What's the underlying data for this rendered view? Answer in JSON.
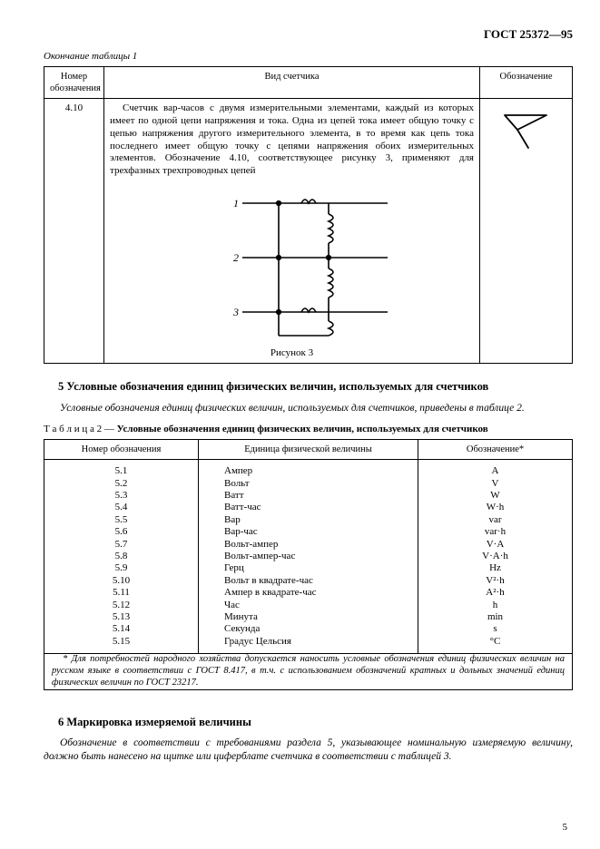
{
  "doc_header": "ГОСТ 25372—95",
  "table1": {
    "caption_end": "Окончание таблицы 1",
    "headers": {
      "num": "Номер обозначения",
      "kind": "Вид счетчика",
      "sym": "Обозначение"
    },
    "row": {
      "num": "4.10",
      "desc": "Счетчик вар-часов с двумя измерительными элементами, каждый из которых имеет по одной цепи напряжения и тока. Одна из цепей тока имеет общую точку с цепью напряжения другого измерительного элемента, в то время как цепь тока последнего имеет общую точку с цепями напряжения обоих измерительных элементов. Обозначение 4.10, соответствующее рисунку 3, применяют для трехфазных трехпроводных цепей"
    },
    "figure": {
      "labels": [
        "1",
        "2",
        "3"
      ],
      "caption": "Рисунок 3"
    }
  },
  "section5": {
    "title": "5  Условные обозначения единиц физических величин, используемых для счетчиков",
    "intro": "Условные обозначения единиц физических величин, используемых для счетчиков, приведены в таблице 2.",
    "table2": {
      "caption_lead": "Т а б л и ц а  2 — ",
      "caption_bold": "Условные обозначения единиц физических величин, используемых для счетчиков",
      "headers": {
        "num": "Номер обозначения",
        "unit": "Единица физической величины",
        "sym": "Обозначение*"
      },
      "rows": [
        {
          "num": "5.1",
          "unit": "Ампер",
          "sym": "A"
        },
        {
          "num": "5.2",
          "unit": "Вольт",
          "sym": "V"
        },
        {
          "num": "5.3",
          "unit": "Ватт",
          "sym": "W"
        },
        {
          "num": "5.4",
          "unit": "Ватт-час",
          "sym": "W·h"
        },
        {
          "num": "5.5",
          "unit": "Вар",
          "sym": "var"
        },
        {
          "num": "5.6",
          "unit": "Вар-час",
          "sym": "var·h"
        },
        {
          "num": "5.7",
          "unit": "Вольт-ампер",
          "sym": "V·A"
        },
        {
          "num": "5.8",
          "unit": "Вольт-ампер-час",
          "sym": "V·A·h"
        },
        {
          "num": "5.9",
          "unit": "Герц",
          "sym": "Hz"
        },
        {
          "num": "5.10",
          "unit": "Вольт в квадрате-час",
          "sym": "V²·h"
        },
        {
          "num": "5.11",
          "unit": "Ампер в квадрате-час",
          "sym": "A²·h"
        },
        {
          "num": "5.12",
          "unit": "Час",
          "sym": "h"
        },
        {
          "num": "5.13",
          "unit": "Минута",
          "sym": "min"
        },
        {
          "num": "5.14",
          "unit": "Секунда",
          "sym": "s"
        },
        {
          "num": "5.15",
          "unit": "Градус Цельсия",
          "sym": "°C"
        }
      ],
      "footnote": "*  Для потребностей народного хозяйства допускается наносить условные обозначения единиц физических величин на русском языке в соответствии с ГОСТ 8.417, в т.ч. с использованием обозначений кратных и дольных значений единиц физических величин по ГОСТ 23217."
    }
  },
  "section6": {
    "title": "6  Маркировка измеряемой величины",
    "para": "Обозначение в соответствии с требованиями раздела 5, указывающее номинальную измеряемую величину, должно быть нанесено на щитке или циферблате счетчика в соответствии с таблицей 3."
  },
  "page_number": "5"
}
